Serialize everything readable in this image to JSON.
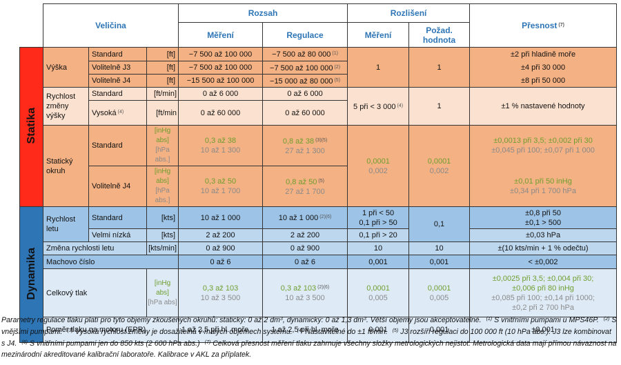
{
  "header": {
    "velicina": "Veličina",
    "rozsah": "Rozsah",
    "rozsah_mereni": "Měření",
    "rozsah_regulace": "Regulace",
    "rozliseni": "Rozlišení",
    "rozliseni_mereni": "Měření",
    "pozadovana": "Požad. hodnota",
    "presnost": "Přesnost",
    "presnost_note": "(7)"
  },
  "statika": {
    "label": "Statika",
    "vyska": {
      "label": "Výška",
      "options": [
        {
          "name": "Standard",
          "unit": "[ft]",
          "mereni": "−7 500 až 100 000",
          "regulace": "−7 500 až 80 000",
          "note": "(1)",
          "presnost": "±2 při hladině moře"
        },
        {
          "name": "Volitelně J3",
          "unit": "[ft]",
          "mereni": "−7 500 až 100 000",
          "regulace": "−7 500 až 100 000",
          "note": "(2)",
          "presnost": "±4 při 30 000"
        },
        {
          "name": "Volitelně J4",
          "unit": "[ft]",
          "mereni": "−15 500 až 100 000",
          "regulace": "−15 000 až 80 000",
          "note": "(5)",
          "presnost": "±8 při 50 000"
        }
      ],
      "rozliseni_mereni": "1",
      "pozadovana": "1"
    },
    "zmena_vysky": {
      "label": "Rychlost změny výšky",
      "options": [
        {
          "name": "Standard",
          "unit": "[ft/min]",
          "mereni": "0 až 6 000",
          "regulace": "0 až 6 000"
        },
        {
          "name": "Vysoká",
          "note": "(4)",
          "unit": "[ft/min",
          "mereni": "0 až 60 000",
          "regulace": "0 až 60 000"
        }
      ],
      "rozliseni_mereni": "5 při < 3 000",
      "rozliseni_note": "(4)",
      "pozadovana": "1",
      "presnost": "±1 % nastavené hodnoty"
    },
    "staticky_okruh": {
      "label": "Statický okruh",
      "options": [
        {
          "name": "Standard",
          "units": [
            "[inHg abs]",
            "[hPa abs.]"
          ],
          "mereni": [
            "0,3 až 38",
            "10 až 1 300"
          ],
          "regulace": [
            "0,8 až 38",
            "27 až 1 300"
          ],
          "note": "(3)(5)",
          "presnost": [
            "±0,0013 při 3,5; ±0,002 při 30",
            "±0,045 při 100; ±0,07 při 1 000"
          ]
        },
        {
          "name": "Volitelně J4",
          "units": [
            "[inHg abs]",
            "[hPa abs.]"
          ],
          "mereni": [
            "0,3 až 50",
            "10 až 1 700"
          ],
          "regulace": [
            "0,8 až 50",
            "27 až 1 700"
          ],
          "note": "(5)",
          "presnost": [
            "±0,01 při 50 inHg",
            "±0,34 při 1 700 hPa"
          ]
        }
      ],
      "rozliseni_mereni": [
        "0,0001",
        "0,002"
      ],
      "pozadovana": [
        "0,0001",
        "0,002"
      ]
    }
  },
  "dynamika": {
    "label": "Dynamika",
    "rychlost_letu": {
      "label": "Rychlost letu",
      "options": [
        {
          "name": "Standard",
          "unit": "[kts]",
          "mereni": "10 až 1 000",
          "regulace": "10 až 1 000",
          "note": "(2)(6)",
          "rozliseni_mereni": [
            "1 při < 50",
            "0,1 při > 50"
          ],
          "presnost": [
            "±0,8 při 50",
            "±0,1 > 500"
          ]
        },
        {
          "name": "Velmi nízká",
          "unit": "[kts]",
          "mereni": "2 až 200",
          "regulace": "2 až 200",
          "rozliseni_mereni": [
            "0,1 při > 20"
          ],
          "presnost": [
            "±0,03 hPa"
          ]
        }
      ],
      "pozadovana": "0,1"
    },
    "zmena_rychlosti": {
      "label": "Změna rychlosti letu",
      "unit": "[kts/min]",
      "mereni": "0 až 900",
      "regulace": "0 až 900",
      "rozliseni_mereni": "10",
      "pozadovana": "10",
      "presnost": "±(10 kts/min + 1 % odečtu)"
    },
    "machovo_cislo": {
      "label": "Machovo číslo",
      "mereni": "0 až 6",
      "regulace": "0 až 6",
      "rozliseni_mereni": "0,001",
      "pozadovana": "0,001",
      "presnost": "< ±0,002"
    },
    "celkovy_tlak": {
      "label": "Celkový tlak",
      "units": [
        "[inHg abs]",
        "[hPa abs]"
      ],
      "mereni": [
        "0,3 až 103",
        "10 až 3 500"
      ],
      "regulace": [
        "0,3 až 103",
        "10 až 3 500"
      ],
      "note": "(2)(6)",
      "rozliseni_mereni": [
        "0,0001",
        "0,005"
      ],
      "pozadovana": [
        "0,0001",
        "0,005"
      ],
      "presnost_inhg": [
        "±0,0025 při 3,5; ±0,004 při 30;",
        "±0,006 při 80 inHg"
      ],
      "presnost_hpa": [
        "±0,085 při 100; ±0,14 při 1000;",
        "±0,2 při 2 700 hPa"
      ]
    },
    "epr": {
      "label": "Poměr tlaku na motoru (EPR)",
      "mereni": "1 až 2,5 při hl. moře",
      "regulace": "1 až 2,5 při hl. moře",
      "rozliseni_mereni": "0,001",
      "pozadovana": "0,001",
      "presnost": "±0,001"
    }
  },
  "footnote": [
    {
      "t": "Parametry regulace tlaku platí pro tyto objemy zkoušených okruhů: statický: 0 až 2 dm"
    },
    {
      "e": "3"
    },
    {
      "t": ", dynamický: 0 až 1,3 dm"
    },
    {
      "e": "3"
    },
    {
      "t": ". Větší objemy jsou akceptovatelné."
    },
    {
      "n": "(1)"
    },
    {
      "t": "S vnitřními pumpami u MPS46P."
    },
    {
      "n": "(2)"
    },
    {
      "t": "S vnějšími pumpami."
    },
    {
      "n": "(3)"
    },
    {
      "t": "Vysoká rychlost změny je dosažitelná v malých objemech systému."
    },
    {
      "n": "(4)"
    },
    {
      "t": "Nastavitelné do ±1 ft/min."
    },
    {
      "n": "(5)"
    },
    {
      "t": "J3 rozšíří regulaci do 100 000 ft (10 hPa abs.). J3 lze kombinovat s J4."
    },
    {
      "n": "(6)"
    },
    {
      "t": "S vnitřními pumpami jen do 850 kts (2 600 hPa abs.)"
    },
    {
      "n": "(7)"
    },
    {
      "t": "Celková přesnost měření tlaku zahrnuje všechny složky metrologických nejistot. Metrologická data mají přímou návaznost na mezinárodní akreditované kalibrační laboratoře. Kalibrace v AKL za příplatek."
    }
  ]
}
